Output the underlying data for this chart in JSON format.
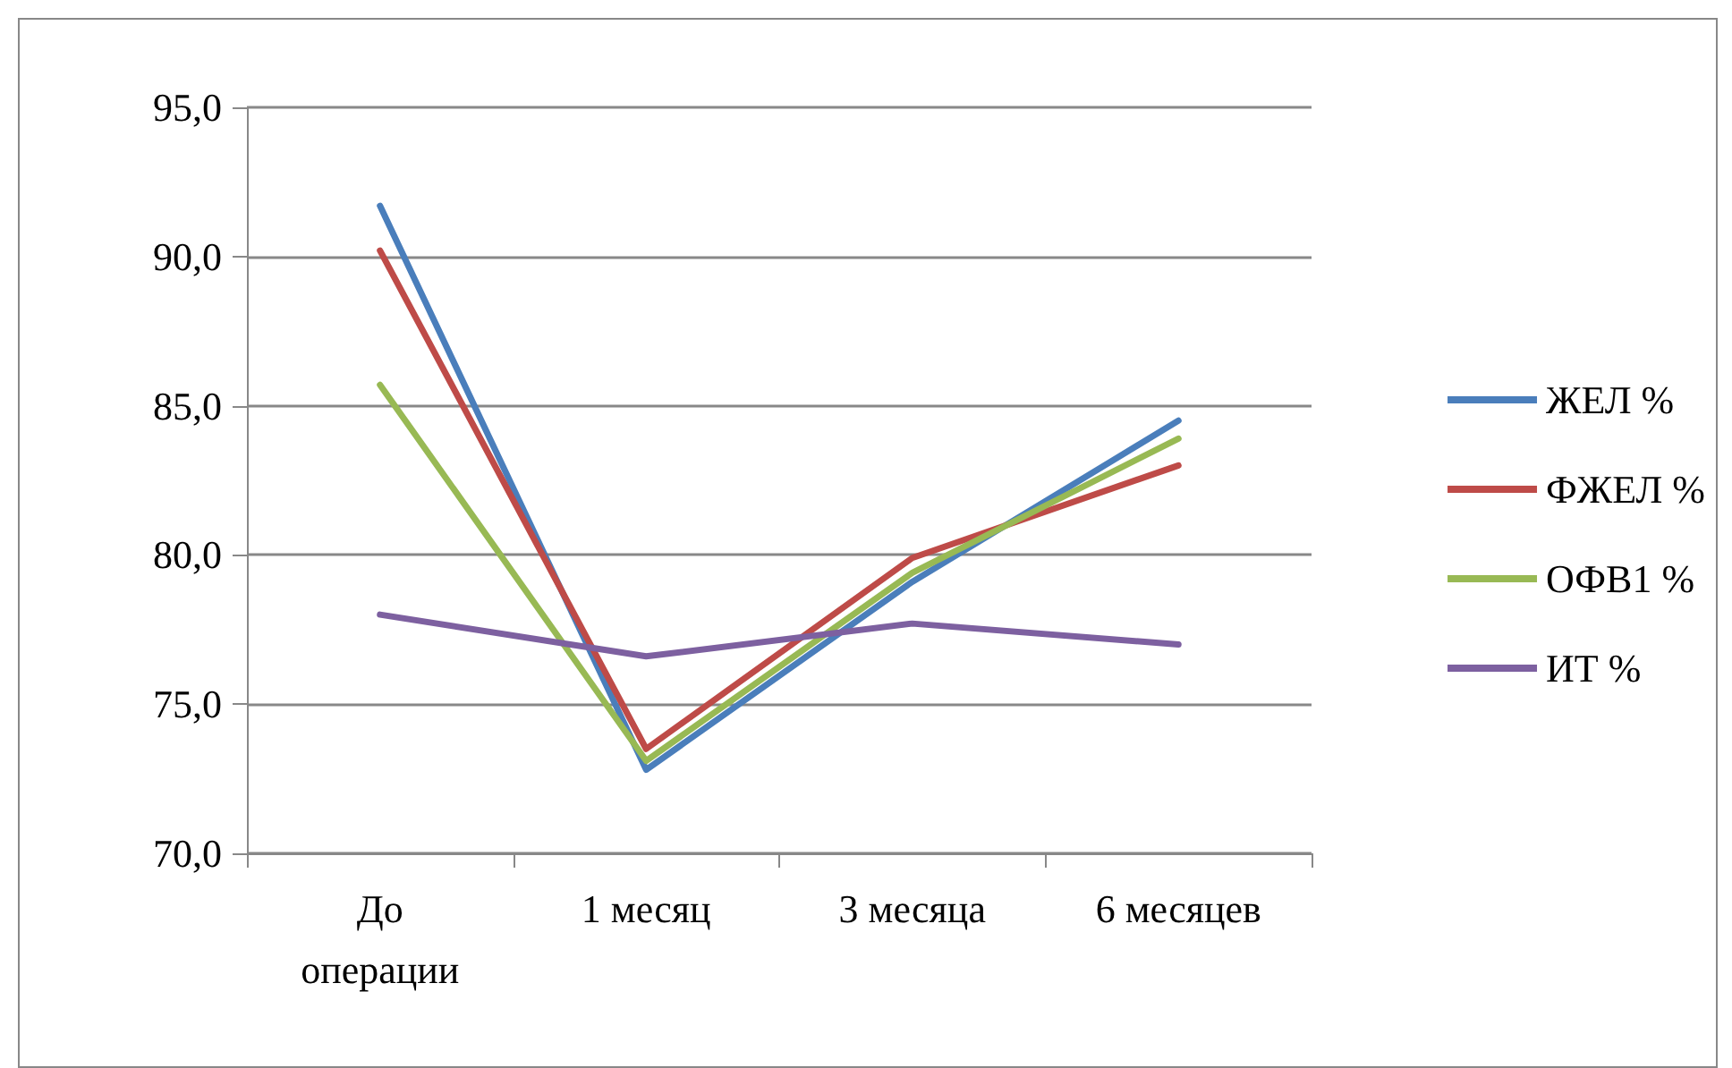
{
  "chart_data": {
    "type": "line",
    "categories": [
      "До\nоперации",
      "1 месяц",
      "3 месяца",
      "6 месяцев"
    ],
    "series": [
      {
        "name": "ЖЕЛ %",
        "color": "#4a7ebb",
        "values": [
          91.7,
          72.8,
          79.1,
          84.5
        ]
      },
      {
        "name": "ФЖЕЛ %",
        "color": "#be4b48",
        "values": [
          90.2,
          73.5,
          79.9,
          83.0
        ]
      },
      {
        "name": "ОФВ1 %",
        "color": "#98b954",
        "values": [
          85.7,
          73.1,
          79.4,
          83.9
        ]
      },
      {
        "name": "ИТ %",
        "color": "#7d60a0",
        "values": [
          78.0,
          76.6,
          77.7,
          77.0
        ]
      }
    ],
    "ylim": [
      70,
      95
    ],
    "yticks": [
      {
        "value": 70,
        "label": "70,0"
      },
      {
        "value": 75,
        "label": "75,0"
      },
      {
        "value": 80,
        "label": "80,0"
      },
      {
        "value": 85,
        "label": "85,0"
      },
      {
        "value": 90,
        "label": "90,0"
      },
      {
        "value": 95,
        "label": "95,0"
      }
    ],
    "grid": "y",
    "legend": "right",
    "marker": "none",
    "line_style": "solid"
  }
}
